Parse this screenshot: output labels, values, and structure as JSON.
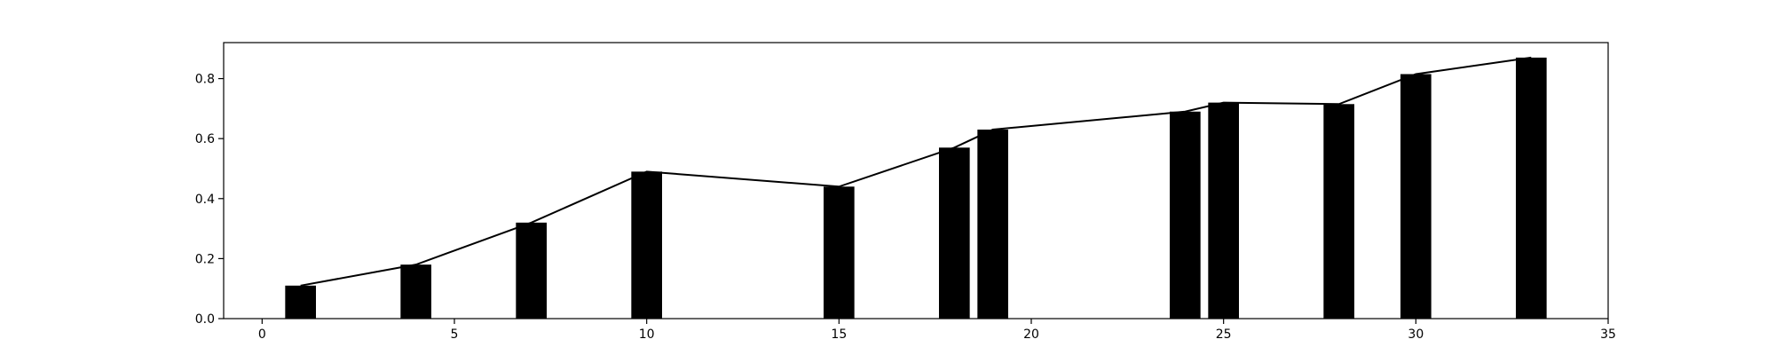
{
  "chart_data": {
    "type": "bar",
    "title": "",
    "xlabel": "",
    "ylabel": "",
    "xlim": [
      -1,
      35
    ],
    "ylim": [
      0,
      0.92
    ],
    "grid": false,
    "x_ticks": [
      0,
      5,
      10,
      15,
      20,
      25,
      30,
      35
    ],
    "x_tick_labels": [
      "0",
      "5",
      "10",
      "15",
      "20",
      "25",
      "30",
      "35"
    ],
    "y_ticks": [
      0.0,
      0.2,
      0.4,
      0.6,
      0.8
    ],
    "y_tick_labels": [
      "0.0",
      "0.2",
      "0.4",
      "0.6",
      "0.8"
    ],
    "bars": {
      "x": [
        1,
        4,
        7,
        10,
        15,
        18,
        19,
        24,
        25,
        28,
        30,
        33
      ],
      "values": [
        0.11,
        0.18,
        0.32,
        0.49,
        0.44,
        0.57,
        0.63,
        0.69,
        0.72,
        0.715,
        0.815,
        0.87
      ],
      "width": 0.8,
      "color": "#000000"
    },
    "line": {
      "x": [
        1,
        4,
        7,
        10,
        15,
        18,
        19,
        24,
        25,
        28,
        30,
        33
      ],
      "values": [
        0.11,
        0.18,
        0.32,
        0.49,
        0.44,
        0.57,
        0.63,
        0.69,
        0.72,
        0.715,
        0.815,
        0.87
      ],
      "color": "#000000"
    }
  }
}
